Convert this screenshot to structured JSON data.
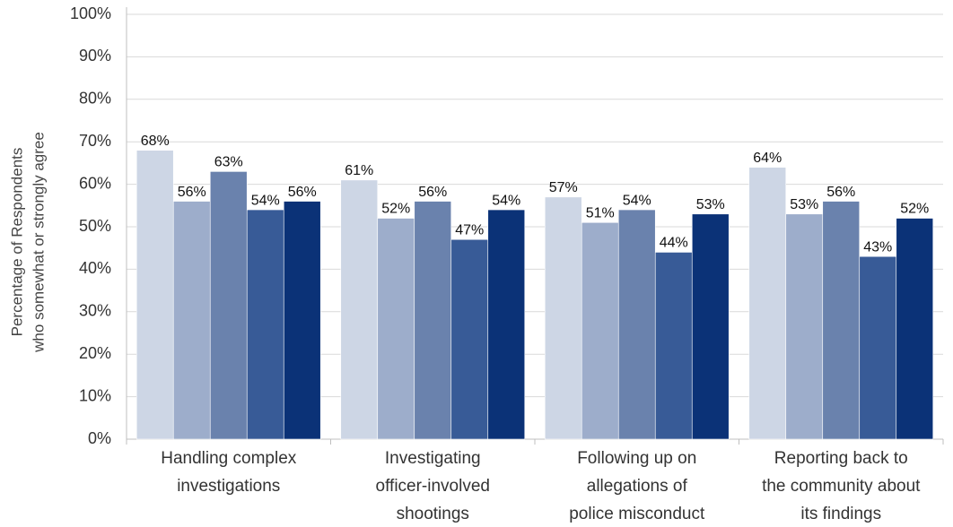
{
  "chart_data": {
    "type": "bar",
    "ylabel": [
      "Percentage of Respondents",
      "who somewhat or strongly agree"
    ],
    "categories": [
      [
        "Handling complex",
        "investigations"
      ],
      [
        "Investigating",
        "officer-involved",
        "shootings"
      ],
      [
        "Following up on",
        "allegations of",
        "police misconduct"
      ],
      [
        "Reporting back to",
        "the community about",
        "its findings"
      ]
    ],
    "series": [
      {
        "color": "#cdd6e5",
        "values": [
          68,
          61,
          57,
          64
        ],
        "value_labels": [
          "68%",
          "61%",
          "57%",
          "64%"
        ]
      },
      {
        "color": "#9dadcb",
        "values": [
          56,
          52,
          51,
          53
        ],
        "value_labels": [
          "56%",
          "52%",
          "51%",
          "53%"
        ]
      },
      {
        "color": "#6a82ad",
        "values": [
          63,
          56,
          54,
          56
        ],
        "value_labels": [
          "63%",
          "56%",
          "54%",
          "56%"
        ]
      },
      {
        "color": "#385b97",
        "values": [
          54,
          47,
          44,
          43
        ],
        "value_labels": [
          "54%",
          "47%",
          "44%",
          "43%"
        ]
      },
      {
        "color": "#0b3277",
        "values": [
          56,
          54,
          53,
          52
        ],
        "value_labels": [
          "56%",
          "54%",
          "53%",
          "52%"
        ]
      }
    ],
    "ylim": [
      0,
      100
    ],
    "yticks": [
      {
        "value": 0,
        "label": "0%"
      },
      {
        "value": 10,
        "label": "10%"
      },
      {
        "value": 20,
        "label": "20%"
      },
      {
        "value": 30,
        "label": "30%"
      },
      {
        "value": 40,
        "label": "40%"
      },
      {
        "value": 50,
        "label": "50%"
      },
      {
        "value": 60,
        "label": "60%"
      },
      {
        "value": 70,
        "label": "70%"
      },
      {
        "value": 80,
        "label": "80%"
      },
      {
        "value": 90,
        "label": "90%"
      },
      {
        "value": 100,
        "label": "100%"
      }
    ],
    "grid": true
  }
}
